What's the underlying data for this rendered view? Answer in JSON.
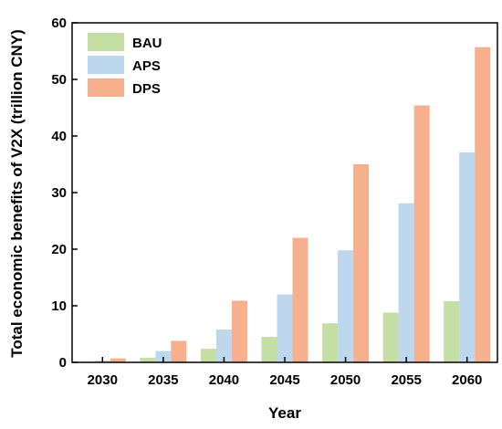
{
  "chart_data": {
    "type": "bar",
    "xlabel": "Year",
    "ylabel": "Total economic benefits of V2X (trillion CNY)",
    "categories": [
      "2030",
      "2035",
      "2040",
      "2045",
      "2050",
      "2055",
      "2060"
    ],
    "series": [
      {
        "name": "BAU",
        "color": "#c5dea4",
        "values": [
          0.1,
          0.8,
          2.4,
          4.5,
          6.9,
          8.8,
          10.8
        ]
      },
      {
        "name": "APS",
        "color": "#bcd7ee",
        "values": [
          0.3,
          2.0,
          5.8,
          12.0,
          19.8,
          28.1,
          37.1
        ]
      },
      {
        "name": "DPS",
        "color": "#f7b08e",
        "values": [
          0.7,
          3.8,
          10.9,
          22.0,
          35.0,
          45.4,
          55.7
        ]
      }
    ],
    "ylim": [
      0,
      60
    ],
    "yticks": [
      0,
      10,
      20,
      30,
      40,
      50,
      60
    ],
    "grid": false,
    "legend_position": "top-left"
  }
}
